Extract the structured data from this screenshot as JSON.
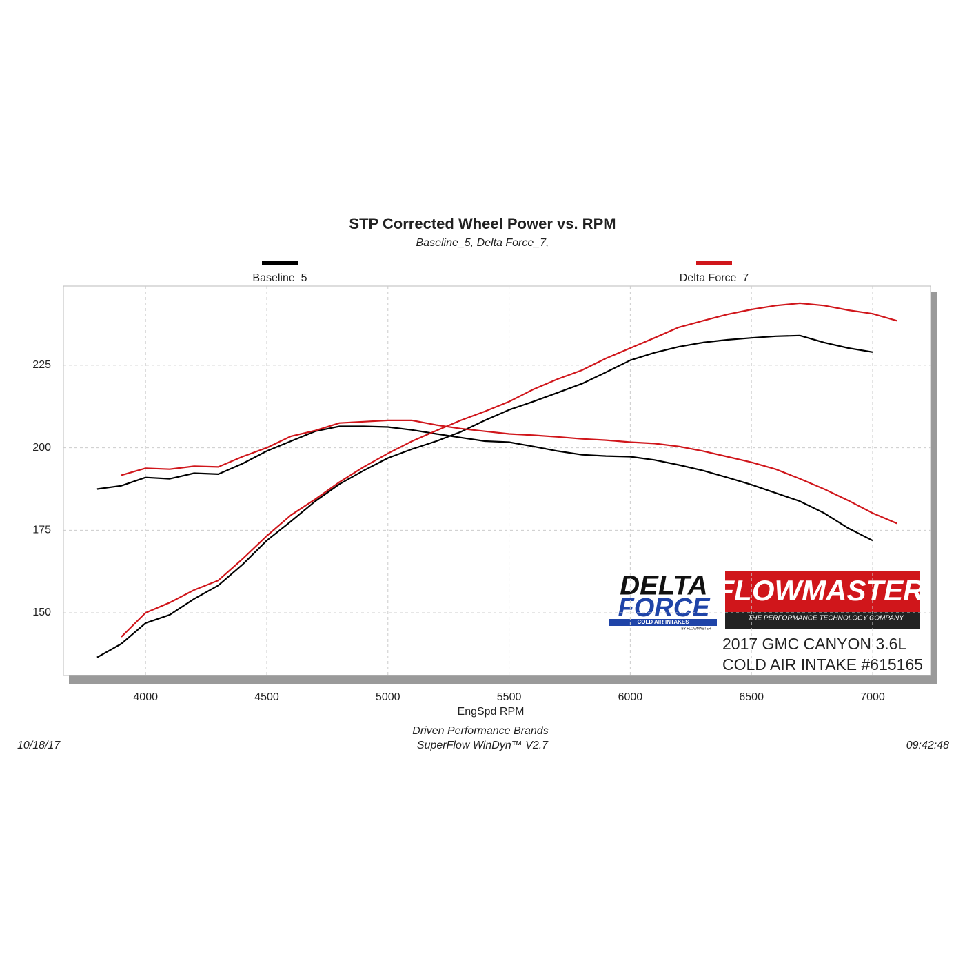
{
  "chart_data": {
    "type": "line",
    "title": "STP Corrected Wheel Power vs. RPM",
    "subtitle": "Baseline_5, Delta Force_7,",
    "x_label": "EngSpd  RPM",
    "x": [
      3800,
      3900,
      4000,
      4100,
      4200,
      4300,
      4400,
      4500,
      4600,
      4700,
      4800,
      4900,
      5000,
      5100,
      5200,
      5300,
      5400,
      5500,
      5600,
      5700,
      5800,
      5900,
      6000,
      6100,
      6200,
      6300,
      6400,
      6500,
      6600,
      6700,
      6800,
      6900,
      7000,
      7100
    ],
    "series": [
      {
        "name": "Baseline_5",
        "color": "#000000",
        "curves": [
          [
            187.5,
            188.5,
            191,
            190.6,
            192.3,
            192,
            195.2,
            199,
            202,
            205,
            206.5,
            206.5,
            206.3,
            205.4,
            204.2,
            203.1,
            202,
            201.7,
            200.4,
            199,
            197.9,
            197.5,
            197.3,
            196.3,
            194.8,
            193.1,
            191,
            188.8,
            186.3,
            183.8,
            180.2,
            175.6,
            171.9,
            null
          ],
          [
            136.5,
            140.6,
            146.9,
            149.4,
            154.2,
            158.3,
            164.6,
            171.9,
            177.7,
            183.8,
            189,
            193.1,
            196.9,
            199.6,
            202,
            204.8,
            208.3,
            211.5,
            214,
            216.7,
            219.4,
            222.9,
            226.5,
            228.8,
            230.6,
            231.9,
            232.7,
            233.3,
            233.8,
            234,
            231.9,
            230.2,
            229,
            null
          ]
        ]
      },
      {
        "name": "Delta Force_7",
        "color": "#d0161b",
        "curves": [
          [
            null,
            191.7,
            193.8,
            193.5,
            194.4,
            194.2,
            197.3,
            200,
            203.5,
            205.2,
            207.5,
            207.9,
            208.3,
            208.3,
            206.9,
            205.8,
            205,
            204.2,
            203.8,
            203.3,
            202.7,
            202.3,
            201.7,
            201.3,
            200.4,
            199,
            197.3,
            195.6,
            193.5,
            190.6,
            187.5,
            184,
            180.2,
            177.1
          ],
          [
            null,
            142.7,
            150,
            153.1,
            156.9,
            159.8,
            166.3,
            173.3,
            179.6,
            184.4,
            189.6,
            194.2,
            198.3,
            202,
            205.2,
            208.3,
            211,
            214,
            217.7,
            220.8,
            223.5,
            227.1,
            230.2,
            233.3,
            236.5,
            238.5,
            240.4,
            241.9,
            243.1,
            243.8,
            243.1,
            241.7,
            240.6,
            238.5
          ]
        ]
      }
    ],
    "xlim": [
      3661,
      7239
    ],
    "ylim": [
      131,
      249
    ],
    "xticks": [
      4000,
      4500,
      5000,
      5500,
      6000,
      6500,
      7000
    ],
    "yticks": [
      150,
      175,
      200,
      225
    ],
    "grid": true,
    "footer": [
      "Driven Performance Brands",
      "SuperFlow WinDyn™  V2.7"
    ],
    "date": "10/18/17",
    "time": "09:42:48",
    "logos": {
      "delta": [
        "DELTA",
        "FORCE",
        "COLD AIR INTAKES",
        "BY FLOWMASTER"
      ],
      "flowmaster": [
        "FLOWMASTER",
        "THE PERFORMANCE TECHNOLOGY COMPANY"
      ]
    },
    "caption": [
      "2017 GMC CANYON 3.6L",
      "COLD AIR INTAKE #615165"
    ]
  }
}
